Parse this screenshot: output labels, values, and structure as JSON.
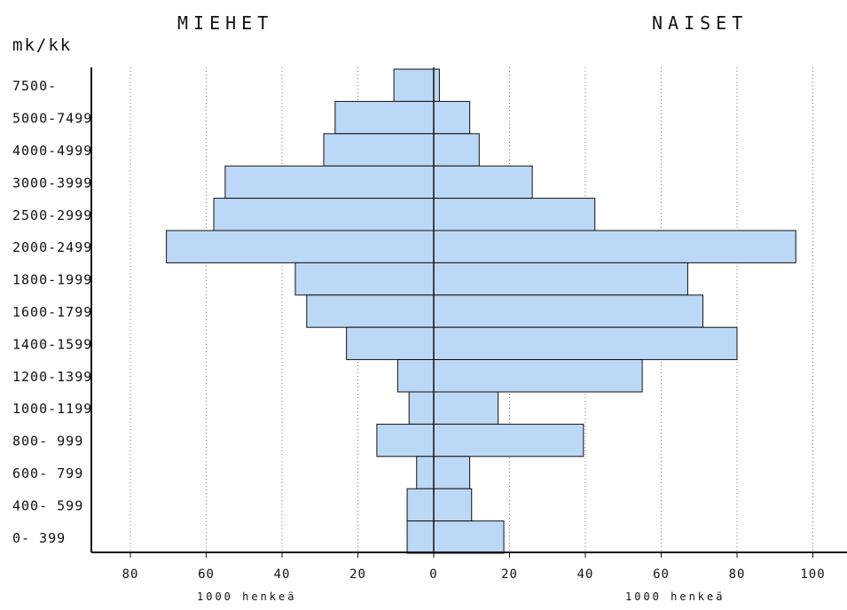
{
  "chart_data": {
    "type": "bar",
    "orientation": "horizontal",
    "layout": "population-pyramid",
    "title_left": "MIEHET",
    "title_right": "NAISET",
    "unit_label": "mk/kk",
    "xlabel_left": "1000 henkeä",
    "xlabel_right": "1000 henkeä",
    "xlim": [
      -80,
      100
    ],
    "x_ticks": [
      -80,
      -60,
      -40,
      -20,
      0,
      20,
      40,
      60,
      80,
      100
    ],
    "x_tick_labels": [
      "80",
      "60",
      "40",
      "20",
      "0",
      "20",
      "40",
      "60",
      "80",
      "100"
    ],
    "grid": "vertical dotted",
    "categories": [
      "7500-",
      "5000-7499",
      "4000-4999",
      "3000-3999",
      "2500-2999",
      "2000-2499",
      "1800-1999",
      "1600-1799",
      "1400-1599",
      "1200-1399",
      "1000-1199",
      "800- 999",
      "600- 799",
      "400- 599",
      "0- 399"
    ],
    "series": [
      {
        "name": "MIEHET",
        "values": [
          10.5,
          26,
          29,
          55,
          58,
          70.5,
          36.5,
          33.5,
          23,
          9.5,
          6.5,
          15,
          4.5,
          7,
          7
        ]
      },
      {
        "name": "NAISET",
        "values": [
          1.5,
          9.5,
          12,
          26,
          42.5,
          95.5,
          67,
          71,
          80,
          55,
          17,
          39.5,
          9.5,
          10,
          18.5
        ]
      }
    ],
    "bar_color": "#bcd8f7"
  }
}
